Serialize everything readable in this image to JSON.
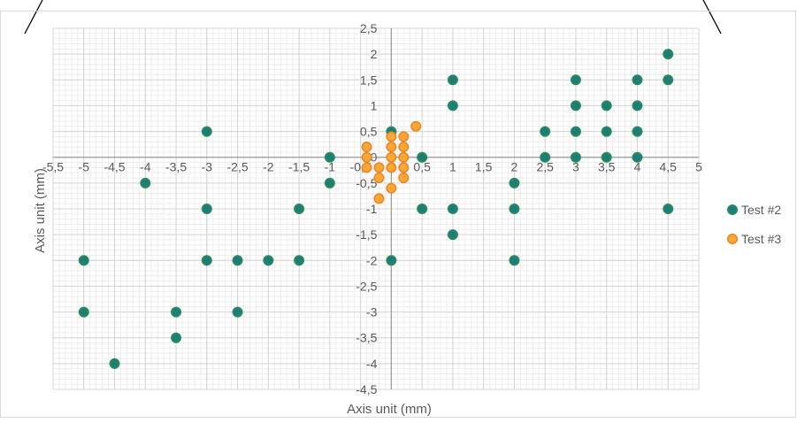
{
  "chart_data": {
    "type": "scatter",
    "xlabel": "Axis unit (mm)",
    "ylabel": "Axis unit (mm)",
    "xlim": [
      -5.5,
      5
    ],
    "ylim": [
      -4.5,
      2.5
    ],
    "x_major_step": 0.5,
    "y_major_step": 0.5,
    "minor_grid": true,
    "axes_cross_at": [
      0,
      0
    ],
    "decimal_separator": ",",
    "legend_position": "right",
    "series": [
      {
        "name": "Test #2",
        "color": "#1a7f7a",
        "edge_color": "#2e8b57",
        "points": [
          [
            4.5,
            2
          ],
          [
            4.5,
            1.5
          ],
          [
            4,
            1.5
          ],
          [
            3,
            1.5
          ],
          [
            1,
            1.5
          ],
          [
            1,
            1
          ],
          [
            3,
            1
          ],
          [
            3.5,
            1
          ],
          [
            4,
            1
          ],
          [
            -3,
            0.5
          ],
          [
            0,
            0.5
          ],
          [
            2.5,
            0.5
          ],
          [
            3,
            0.5
          ],
          [
            3.5,
            0.5
          ],
          [
            4,
            0.5
          ],
          [
            -1,
            0
          ],
          [
            0.5,
            0
          ],
          [
            2.5,
            0
          ],
          [
            3,
            0
          ],
          [
            3.5,
            0
          ],
          [
            4,
            0
          ],
          [
            -4,
            -0.5
          ],
          [
            -1,
            -0.5
          ],
          [
            2,
            -0.5
          ],
          [
            -3,
            -1
          ],
          [
            -1.5,
            -1
          ],
          [
            0.5,
            -1
          ],
          [
            1,
            -1
          ],
          [
            2,
            -1
          ],
          [
            4.5,
            -1
          ],
          [
            1,
            -1.5
          ],
          [
            -5,
            -2
          ],
          [
            -3,
            -2
          ],
          [
            -2.5,
            -2
          ],
          [
            -2,
            -2
          ],
          [
            -1.5,
            -2
          ],
          [
            0,
            -2
          ],
          [
            2,
            -2
          ],
          [
            -5,
            -3
          ],
          [
            -3.5,
            -3
          ],
          [
            -2.5,
            -3
          ],
          [
            -3.5,
            -3.5
          ],
          [
            -4.5,
            -4
          ]
        ]
      },
      {
        "name": "Test #3",
        "color": "#ffa733",
        "edge_color": "#e8862a",
        "points": [
          [
            0.4,
            0.6
          ],
          [
            0,
            0.4
          ],
          [
            0.2,
            0.4
          ],
          [
            -0.4,
            0.2
          ],
          [
            0,
            0.2
          ],
          [
            0.2,
            0.2
          ],
          [
            -0.4,
            0
          ],
          [
            0,
            0
          ],
          [
            0.2,
            0
          ],
          [
            -0.4,
            -0.2
          ],
          [
            -0.2,
            -0.2
          ],
          [
            0,
            -0.2
          ],
          [
            0.2,
            -0.2
          ],
          [
            -0.2,
            -0.4
          ],
          [
            0.2,
            -0.4
          ],
          [
            0,
            -0.6
          ],
          [
            -0.2,
            -0.8
          ]
        ]
      }
    ]
  }
}
